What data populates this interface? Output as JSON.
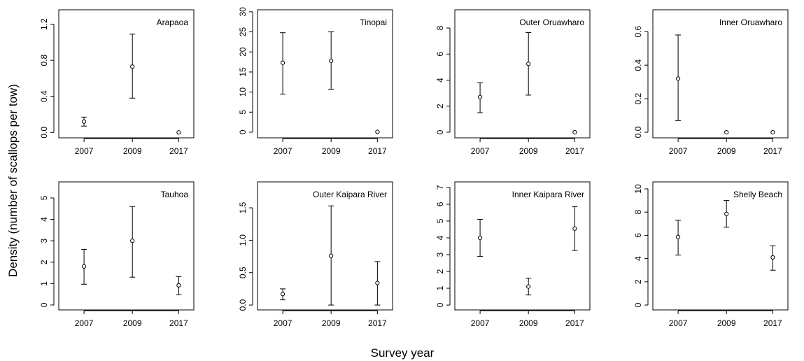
{
  "ylabel": "Density (number of scallops per tow)",
  "xlabel": "Survey year",
  "chart_data": [
    {
      "type": "errorbar",
      "title": "Arapaoa",
      "categories": [
        "2007",
        "2009",
        "2017"
      ],
      "values": [
        0.12,
        0.73,
        0.0
      ],
      "lower": [
        0.07,
        0.38,
        null
      ],
      "upper": [
        0.17,
        1.09,
        null
      ],
      "ylim": [
        -0.06,
        1.36
      ],
      "yticks": [
        {
          "value": 0,
          "label": "0.0"
        },
        0.4,
        0.8,
        1.2
      ]
    },
    {
      "type": "errorbar",
      "title": "Tinopai",
      "categories": [
        "2007",
        "2009",
        "2017"
      ],
      "values": [
        17.3,
        17.8,
        0.1
      ],
      "lower": [
        9.5,
        10.7,
        null
      ],
      "upper": [
        24.8,
        25.0,
        null
      ],
      "ylim": [
        -1.4,
        30.5
      ],
      "yticks": [
        0,
        5,
        10,
        15,
        20,
        25,
        30
      ]
    },
    {
      "type": "errorbar",
      "title": "Outer Oruawharo",
      "categories": [
        "2007",
        "2009",
        "2017"
      ],
      "values": [
        2.7,
        5.25,
        0.0
      ],
      "lower": [
        1.5,
        2.85,
        null
      ],
      "upper": [
        3.8,
        7.65,
        null
      ],
      "ylim": [
        -0.43,
        9.4
      ],
      "yticks": [
        0,
        2,
        4,
        6,
        8
      ]
    },
    {
      "type": "errorbar",
      "title": "Inner Oruawharo",
      "categories": [
        "2007",
        "2009",
        "2017"
      ],
      "values": [
        0.32,
        0.0,
        0.0
      ],
      "lower": [
        0.07,
        null,
        null
      ],
      "upper": [
        0.58,
        null,
        null
      ],
      "ylim": [
        -0.033,
        0.73
      ],
      "yticks": [
        {
          "value": 0,
          "label": "0.0"
        },
        0.2,
        0.4,
        0.6
      ]
    },
    {
      "type": "errorbar",
      "title": "Tauhoa",
      "categories": [
        "2007",
        "2009",
        "2017"
      ],
      "values": [
        1.8,
        3.0,
        0.92
      ],
      "lower": [
        0.97,
        1.3,
        0.48
      ],
      "upper": [
        2.6,
        4.6,
        1.33
      ],
      "ylim": [
        -0.23,
        5.75
      ],
      "yticks": [
        0,
        1,
        2,
        3,
        4,
        5
      ]
    },
    {
      "type": "errorbar",
      "title": "Outer Kaipara River",
      "categories": [
        "2007",
        "2009",
        "2017"
      ],
      "values": [
        0.17,
        0.76,
        0.34
      ],
      "lower": [
        0.08,
        0.0,
        0.0
      ],
      "upper": [
        0.25,
        1.53,
        0.67
      ],
      "ylim": [
        -0.075,
        1.9
      ],
      "yticks": [
        {
          "value": 0,
          "label": "0.0"
        },
        0.5,
        {
          "value": 1,
          "label": "1.0"
        },
        1.5
      ]
    },
    {
      "type": "errorbar",
      "title": "Inner Kaipara River",
      "categories": [
        "2007",
        "2009",
        "2017"
      ],
      "values": [
        4.0,
        1.1,
        4.55
      ],
      "lower": [
        2.9,
        0.6,
        3.25
      ],
      "upper": [
        5.1,
        1.6,
        5.85
      ],
      "ylim": [
        -0.29,
        7.33
      ],
      "yticks": [
        0,
        1,
        2,
        3,
        4,
        5,
        6,
        7
      ]
    },
    {
      "type": "errorbar",
      "title": "Shelly Beach",
      "categories": [
        "2007",
        "2009",
        "2017"
      ],
      "values": [
        5.85,
        7.85,
        4.1
      ],
      "lower": [
        4.3,
        6.7,
        3.0
      ],
      "upper": [
        7.3,
        9.0,
        5.1
      ],
      "ylim": [
        -0.42,
        10.6
      ],
      "yticks": [
        0,
        2,
        4,
        6,
        8,
        10
      ]
    }
  ]
}
